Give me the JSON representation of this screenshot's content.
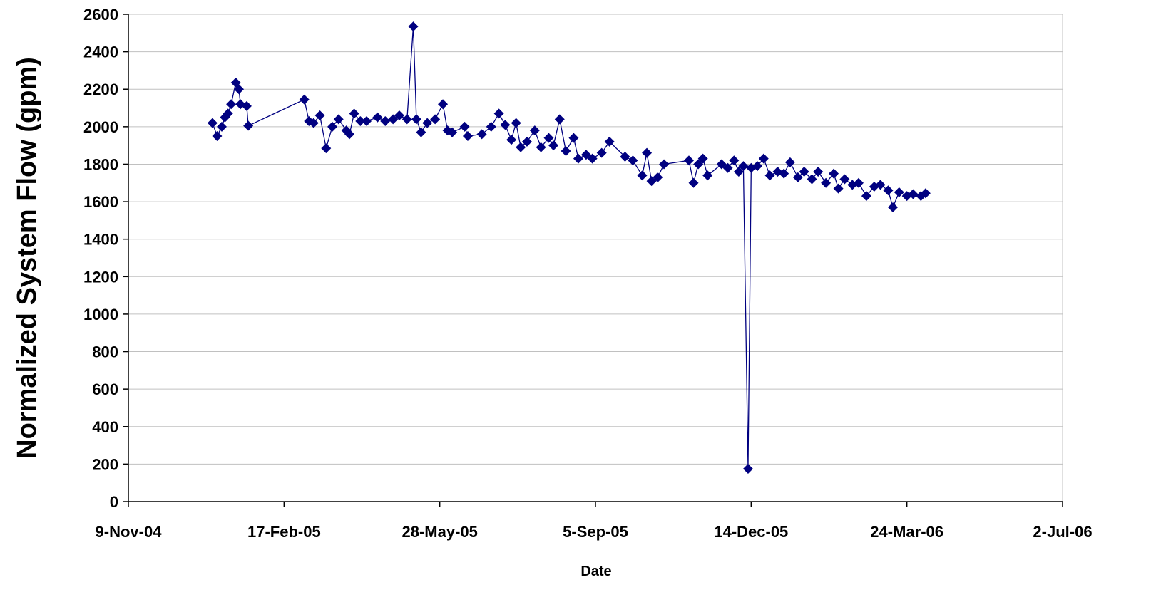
{
  "chart_data": {
    "type": "line",
    "xlabel": "Date",
    "ylabel": "Normalized System Flow (gpm)",
    "x": [
      "2005-01-02",
      "2005-01-05",
      "2005-01-08",
      "2005-01-10",
      "2005-01-12",
      "2005-01-14",
      "2005-01-17",
      "2005-01-19",
      "2005-01-20",
      "2005-01-24",
      "2005-01-25",
      "2005-03-02",
      "2005-03-05",
      "2005-03-08",
      "2005-03-12",
      "2005-03-16",
      "2005-03-20",
      "2005-03-24",
      "2005-03-29",
      "2005-03-31",
      "2005-04-03",
      "2005-04-07",
      "2005-04-11",
      "2005-04-18",
      "2005-04-23",
      "2005-04-28",
      "2005-05-02",
      "2005-05-07",
      "2005-05-11",
      "2005-05-13",
      "2005-05-16",
      "2005-05-20",
      "2005-05-25",
      "2005-05-30",
      "2005-06-02",
      "2005-06-05",
      "2005-06-13",
      "2005-06-15",
      "2005-06-24",
      "2005-06-30",
      "2005-07-05",
      "2005-07-09",
      "2005-07-13",
      "2005-07-16",
      "2005-07-19",
      "2005-07-23",
      "2005-07-28",
      "2005-08-01",
      "2005-08-06",
      "2005-08-09",
      "2005-08-13",
      "2005-08-17",
      "2005-08-22",
      "2005-08-25",
      "2005-08-30",
      "2005-09-03",
      "2005-09-09",
      "2005-09-14",
      "2005-09-24",
      "2005-09-29",
      "2005-10-05",
      "2005-10-08",
      "2005-10-11",
      "2005-10-15",
      "2005-10-19",
      "2005-11-04",
      "2005-11-07",
      "2005-11-10",
      "2005-11-13",
      "2005-11-16",
      "2005-11-25",
      "2005-11-29",
      "2005-12-03",
      "2005-12-06",
      "2005-12-09",
      "2005-12-12",
      "2005-12-14",
      "2005-12-18",
      "2005-12-22",
      "2005-12-26",
      "2005-12-31",
      "2006-01-04",
      "2006-01-08",
      "2006-01-13",
      "2006-01-17",
      "2006-01-22",
      "2006-01-26",
      "2006-01-31",
      "2006-02-05",
      "2006-02-08",
      "2006-02-12",
      "2006-02-17",
      "2006-02-21",
      "2006-02-26",
      "2006-03-03",
      "2006-03-07",
      "2006-03-12",
      "2006-03-15",
      "2006-03-19",
      "2006-03-24",
      "2006-03-28",
      "2006-04-02",
      "2006-04-05"
    ],
    "series": [
      {
        "name": "Normalized System Flow",
        "color": "#000080",
        "values": [
          2020,
          1950,
          2000,
          2050,
          2070,
          2120,
          2235,
          2200,
          2120,
          2110,
          2005,
          2145,
          2030,
          2020,
          2060,
          1885,
          2000,
          2040,
          1980,
          1960,
          2070,
          2030,
          2030,
          2050,
          2030,
          2040,
          2060,
          2040,
          2535,
          2040,
          1970,
          2020,
          2040,
          2120,
          1980,
          1970,
          2000,
          1950,
          1960,
          2000,
          2070,
          2010,
          1930,
          2020,
          1890,
          1920,
          1980,
          1890,
          1940,
          1900,
          2040,
          1870,
          1940,
          1830,
          1850,
          1830,
          1860,
          1920,
          1840,
          1820,
          1740,
          1860,
          1710,
          1730,
          1800,
          1820,
          1700,
          1800,
          1830,
          1740,
          1800,
          1780,
          1820,
          1760,
          1790,
          175,
          1780,
          1790,
          1830,
          1740,
          1760,
          1750,
          1810,
          1730,
          1760,
          1720,
          1760,
          1700,
          1750,
          1670,
          1720,
          1690,
          1700,
          1630,
          1680,
          1690,
          1660,
          1570,
          1650,
          1630,
          1640,
          1630,
          1645
        ]
      }
    ],
    "xlim": [
      "2004-11-09",
      "2006-07-02"
    ],
    "xticks": [
      {
        "value": "2004-11-09",
        "label": "9-Nov-04"
      },
      {
        "value": "2005-02-17",
        "label": "17-Feb-05"
      },
      {
        "value": "2005-05-28",
        "label": "28-May-05"
      },
      {
        "value": "2005-09-05",
        "label": "5-Sep-05"
      },
      {
        "value": "2005-12-14",
        "label": "14-Dec-05"
      },
      {
        "value": "2006-03-24",
        "label": "24-Mar-06"
      },
      {
        "value": "2006-07-02",
        "label": "2-Jul-06"
      }
    ],
    "ylim": [
      0,
      2600
    ],
    "yticks": [
      0,
      200,
      400,
      600,
      800,
      1000,
      1200,
      1400,
      1600,
      1800,
      2000,
      2200,
      2400,
      2600
    ],
    "grid": true
  }
}
